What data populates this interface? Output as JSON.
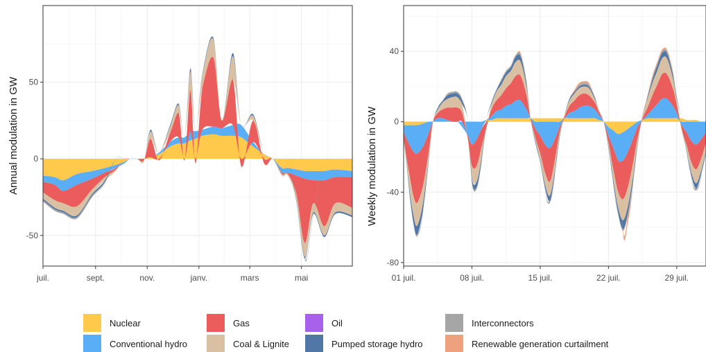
{
  "chart_data": [
    {
      "type": "area",
      "stacked": "diverging",
      "ylabel": "Annual modulation in GW",
      "xlabel": "",
      "x_tick_labels": [
        "juil.",
        "sept.",
        "nov.",
        "janv.",
        "mars",
        "mai"
      ],
      "y_tick_labels": [
        "-50",
        "0",
        "50"
      ],
      "y_ticks": [
        -50,
        0,
        50
      ],
      "ylim": [
        -70,
        100
      ],
      "grid": true,
      "x": [
        "2015-07-01",
        "2015-07-15",
        "2015-07-25",
        "2015-08-10",
        "2015-08-28",
        "2015-09-12",
        "2015-09-25",
        "2015-10-05",
        "2015-10-12",
        "2015-10-20",
        "2015-10-28",
        "2015-11-05",
        "2015-11-15",
        "2015-11-28",
        "2015-12-08",
        "2015-12-15",
        "2015-12-22",
        "2015-12-28",
        "2016-01-05",
        "2016-01-18",
        "2016-01-28",
        "2016-02-10",
        "2016-02-20",
        "2016-03-05",
        "2016-03-18",
        "2016-03-28",
        "2016-04-08",
        "2016-04-15",
        "2016-04-25",
        "2016-05-05",
        "2016-05-15",
        "2016-05-28",
        "2016-06-10",
        "2016-06-30"
      ],
      "series": [
        {
          "name": "Nuclear",
          "color": "#FFC94B",
          "values": [
            -11,
            -12,
            -14,
            -10,
            -8,
            -6,
            -4,
            -2,
            0,
            0,
            0,
            1,
            3,
            8,
            10,
            10,
            12,
            13,
            15,
            16,
            15,
            15,
            14,
            8,
            3,
            0,
            -6,
            -6,
            -7,
            -8,
            -8,
            -8,
            -7,
            -8
          ]
        },
        {
          "name": "Conventional hydro",
          "color": "#5AAEF6",
          "values": [
            -4,
            -5,
            -7,
            -7,
            -5,
            -3,
            -2,
            -1,
            0,
            0,
            0,
            0,
            1,
            3,
            4,
            4,
            6,
            5,
            4,
            5,
            5,
            7,
            8,
            3,
            0,
            0,
            -3,
            -3,
            -4,
            -5,
            -6,
            -6,
            -5,
            -4
          ]
        },
        {
          "name": "Gas",
          "color": "#EB5C5C",
          "values": [
            -7,
            -10,
            -8,
            -14,
            -7,
            -3,
            -1,
            0,
            0,
            0,
            -1,
            12,
            -1,
            6,
            16,
            -1,
            27,
            -3,
            27,
            45,
            5,
            30,
            -5,
            14,
            -3,
            0,
            -1,
            -1,
            -12,
            -42,
            -15,
            -30,
            -17,
            -20
          ]
        },
        {
          "name": "Coal & Lignite",
          "color": "#D9C0A2",
          "values": [
            -4,
            -5,
            -5,
            -6,
            -3,
            -2,
            -1,
            0,
            0,
            0,
            -1,
            5,
            0,
            4,
            5,
            0,
            12,
            0,
            8,
            12,
            0,
            15,
            0,
            3,
            0,
            0,
            -1,
            -1,
            -4,
            -9,
            -6,
            -6,
            -6,
            -5
          ]
        },
        {
          "name": "Pumped storage hydro",
          "color": "#5077A6",
          "values": [
            -1,
            -1,
            -1,
            -1,
            -1,
            -1,
            0,
            0,
            0,
            0,
            0,
            1,
            0,
            1,
            1,
            0,
            2,
            0,
            1,
            1,
            0,
            2,
            0,
            1,
            0,
            0,
            0,
            0,
            -1,
            -1,
            -1,
            -1,
            -1,
            -1
          ]
        },
        {
          "name": "Interconnectors",
          "color": "#A6A6A6",
          "values": [
            -1,
            -1,
            -1,
            -1,
            -1,
            -1,
            0,
            0,
            0,
            0,
            0,
            0,
            0,
            0,
            0,
            0,
            0,
            0,
            0,
            0,
            0,
            0,
            0,
            0,
            0,
            0,
            0,
            0,
            0,
            -1,
            -1,
            0,
            0,
            0
          ]
        },
        {
          "name": "Oil",
          "color": "#A761EB",
          "values": [
            0,
            0,
            0,
            0,
            0,
            0,
            0,
            0,
            0,
            0,
            0,
            0,
            0,
            0,
            0,
            0,
            0,
            0,
            0,
            0,
            0,
            0,
            0,
            0,
            0,
            0,
            0,
            0,
            0,
            0,
            0,
            0,
            0,
            0
          ]
        },
        {
          "name": "Renewable generation curtailment",
          "color": "#EFA07C",
          "values": [
            0,
            0,
            0,
            0,
            0,
            0,
            0,
            0,
            0,
            0,
            0,
            0,
            0,
            0,
            0,
            0,
            0,
            0,
            0,
            0,
            0,
            0,
            0,
            0,
            0,
            0,
            0,
            0,
            0,
            0,
            0,
            0,
            0,
            0
          ]
        }
      ]
    },
    {
      "type": "area",
      "stacked": "diverging",
      "ylabel": "Weekly modulation in GW",
      "xlabel": "",
      "x_tick_labels": [
        "01 juil.",
        "08 juil.",
        "15 juil.",
        "22 juil.",
        "29 juil."
      ],
      "x_ticks_days": [
        0,
        7,
        14,
        21,
        28
      ],
      "y_tick_labels": [
        "-80",
        "-40",
        "0",
        "40"
      ],
      "y_ticks": [
        -80,
        -40,
        0,
        40
      ],
      "ylim": [
        -82,
        66
      ],
      "grid": true,
      "x": [
        0,
        0.5,
        1,
        1.4,
        2,
        2.6,
        3,
        3.5,
        4,
        4.5,
        5,
        5.5,
        6,
        6.6,
        7,
        7.5,
        8,
        8.5,
        9,
        9.5,
        10,
        10.5,
        11,
        11.5,
        12,
        12.6,
        13,
        13.5,
        14,
        14.5,
        15,
        15.5,
        16,
        16.5,
        17,
        17.5,
        18,
        18.5,
        19,
        19.6,
        20,
        20.5,
        21,
        21.5,
        22,
        22.5,
        23,
        23.5,
        24,
        24.5,
        25,
        25.5,
        26,
        26.5,
        27,
        27.6,
        28,
        28.5,
        29,
        29.5,
        30,
        30.5,
        31
      ],
      "series": [
        {
          "name": "Nuclear",
          "color": "#FFC94B",
          "values": [
            -2,
            -2,
            -2,
            -2,
            -1,
            0,
            0,
            0,
            0,
            0,
            0,
            0,
            0,
            0,
            0,
            0,
            0,
            1,
            1,
            2,
            2,
            2,
            2,
            2,
            2,
            2,
            2,
            2,
            2,
            2,
            2,
            2,
            2,
            2,
            2,
            2,
            2,
            2,
            2,
            2,
            1,
            0,
            -3,
            -5,
            -7,
            -6,
            -4,
            -2,
            0,
            1,
            2,
            2,
            2,
            2,
            2,
            2,
            2,
            2,
            1,
            1,
            1,
            0,
            0
          ]
        },
        {
          "name": "Conventional hydro",
          "color": "#5AAEF6",
          "values": [
            -4,
            -10,
            -15,
            -16,
            -13,
            -6,
            0,
            2,
            2,
            1,
            0,
            0,
            -3,
            -8,
            -13,
            -10,
            -4,
            0,
            2,
            4,
            5,
            7,
            8,
            10,
            10,
            5,
            0,
            -4,
            -8,
            -13,
            -15,
            -10,
            -3,
            0,
            3,
            4,
            6,
            7,
            7,
            5,
            3,
            0,
            -5,
            -10,
            -15,
            -16,
            -13,
            -8,
            -3,
            0,
            2,
            5,
            8,
            11,
            11,
            7,
            3,
            -2,
            -6,
            -11,
            -13,
            -10,
            -6
          ]
        },
        {
          "name": "Gas",
          "color": "#EB5C5C",
          "values": [
            -4,
            -15,
            -25,
            -28,
            -22,
            -10,
            0,
            3,
            5,
            7,
            8,
            8,
            5,
            -2,
            -12,
            -15,
            -10,
            -3,
            4,
            6,
            8,
            10,
            12,
            14,
            14,
            8,
            0,
            -5,
            -10,
            -16,
            -19,
            -12,
            -3,
            1,
            4,
            6,
            7,
            7,
            6,
            4,
            2,
            0,
            -4,
            -12,
            -18,
            -22,
            -20,
            -14,
            -6,
            1,
            4,
            8,
            11,
            14,
            14,
            10,
            5,
            -2,
            -7,
            -12,
            -14,
            -11,
            -6
          ]
        },
        {
          "name": "Coal & Lignite",
          "color": "#D9C0A2",
          "values": [
            -1,
            -6,
            -11,
            -13,
            -10,
            -4,
            -1,
            2,
            4,
            5,
            6,
            6,
            5,
            -1,
            -7,
            -9,
            -6,
            -1,
            3,
            5,
            6,
            7,
            7,
            8,
            8,
            5,
            0,
            -2,
            -4,
            -7,
            -8,
            -6,
            -2,
            1,
            3,
            4,
            4,
            4,
            4,
            2,
            1,
            0,
            -2,
            -6,
            -9,
            -12,
            -11,
            -8,
            -3,
            2,
            5,
            7,
            8,
            9,
            9,
            6,
            3,
            -1,
            -3,
            -6,
            -8,
            -7,
            -5
          ]
        },
        {
          "name": "Pumped storage hydro",
          "color": "#5077A6",
          "values": [
            0,
            -2,
            -4,
            -5,
            -4,
            -1,
            0,
            1,
            1,
            2,
            2,
            2,
            2,
            0,
            -2,
            -3,
            -2,
            0,
            1,
            1,
            2,
            2,
            2,
            3,
            3,
            2,
            0,
            -1,
            -1,
            -2,
            -3,
            -2,
            -1,
            0,
            1,
            1,
            1,
            1,
            1,
            1,
            0,
            0,
            -1,
            -2,
            -3,
            -5,
            -4,
            -3,
            -1,
            0,
            1,
            2,
            3,
            3,
            3,
            2,
            1,
            0,
            -1,
            -2,
            -3,
            -2,
            -1
          ]
        },
        {
          "name": "Interconnectors",
          "color": "#A6A6A6",
          "values": [
            0,
            -1,
            -1,
            -1,
            -1,
            0,
            0,
            0,
            0,
            1,
            1,
            1,
            1,
            0,
            -1,
            -1,
            -1,
            0,
            0,
            0,
            1,
            1,
            1,
            1,
            1,
            1,
            0,
            0,
            0,
            -1,
            -1,
            -1,
            0,
            0,
            0,
            0,
            1,
            1,
            1,
            0,
            0,
            0,
            0,
            -1,
            -1,
            -1,
            -1,
            -1,
            0,
            0,
            0,
            1,
            1,
            1,
            1,
            1,
            0,
            0,
            0,
            -1,
            -1,
            -1,
            0
          ]
        },
        {
          "name": "Oil",
          "color": "#A761EB",
          "values": [
            0,
            0,
            0,
            0,
            0,
            0,
            0,
            0,
            0,
            0,
            0,
            0,
            0,
            0,
            0,
            0,
            0,
            0,
            0,
            0,
            0,
            0,
            0,
            0,
            0,
            0,
            0,
            0,
            0,
            0,
            0,
            0,
            0,
            0,
            0,
            0,
            0,
            0,
            0,
            0,
            0,
            0,
            0,
            0,
            0,
            0,
            0,
            0,
            0,
            0,
            0,
            0,
            0,
            0,
            0,
            0,
            0,
            0,
            0,
            0,
            0,
            0,
            0
          ]
        },
        {
          "name": "Renewable generation curtailment",
          "color": "#EFA07C",
          "values": [
            0,
            0,
            0,
            0,
            0,
            0,
            0,
            0,
            0,
            0,
            0,
            0,
            0,
            0,
            0,
            0,
            0,
            0,
            0,
            0,
            0,
            0,
            0,
            0,
            1,
            0,
            0,
            0,
            0,
            0,
            0,
            0,
            0,
            0,
            0,
            1,
            1,
            1,
            1,
            0,
            0,
            0,
            0,
            0,
            0,
            -2,
            -4,
            -1,
            0,
            0,
            1,
            1,
            1,
            1,
            1,
            1,
            0,
            0,
            0,
            0,
            0,
            0,
            0
          ]
        }
      ]
    }
  ],
  "legend": {
    "items": [
      {
        "label": "Nuclear",
        "color": "#FFC94B"
      },
      {
        "label": "Conventional hydro",
        "color": "#5AAEF6"
      },
      {
        "label": "Gas",
        "color": "#EB5C5C"
      },
      {
        "label": "Coal & Lignite",
        "color": "#D9C0A2"
      },
      {
        "label": "Oil",
        "color": "#A761EB"
      },
      {
        "label": "Pumped storage hydro",
        "color": "#5077A6"
      },
      {
        "label": "Interconnectors",
        "color": "#A6A6A6"
      },
      {
        "label": "Renewable generation curtailment",
        "color": "#EFA07C"
      }
    ]
  }
}
